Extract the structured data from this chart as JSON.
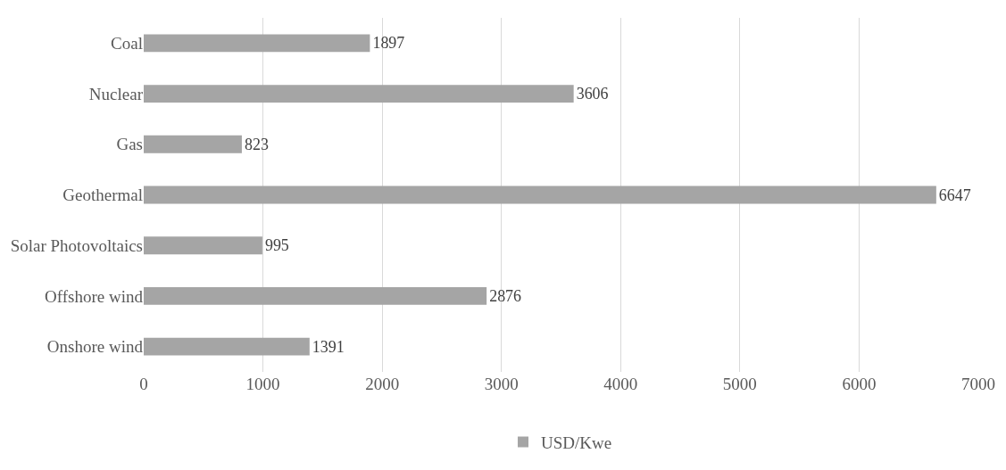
{
  "chart_data": {
    "type": "bar",
    "orientation": "horizontal",
    "categories": [
      "Coal",
      "Nuclear",
      "Gas",
      "Geothermal",
      "Solar Photovoltaics",
      "Offshore wind",
      "Onshore wind"
    ],
    "series": [
      {
        "name": "USD/Kwe",
        "color": "#a5a5a5",
        "values": [
          1897,
          3606,
          823,
          6647,
          995,
          2876,
          1391
        ]
      }
    ],
    "xlim": [
      0,
      7000
    ],
    "xticks": [
      0,
      1000,
      2000,
      3000,
      4000,
      5000,
      6000,
      7000
    ],
    "grid": "x",
    "legend": "bottom",
    "data_labels": true
  }
}
